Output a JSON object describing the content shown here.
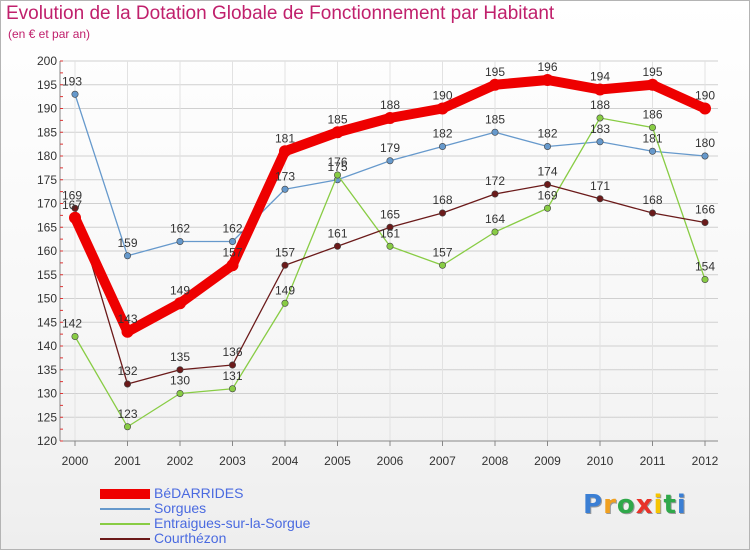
{
  "chart_data": {
    "type": "line",
    "title": "Evolution de la Dotation Globale de Fonctionnement par Habitant",
    "subtitle": "(en € et par an)",
    "categories": [
      "2000",
      "2001",
      "2002",
      "2003",
      "2004",
      "2005",
      "2006",
      "2007",
      "2008",
      "2009",
      "2010",
      "2011",
      "2012"
    ],
    "ylim": [
      120,
      200
    ],
    "yticks": [
      120,
      125,
      130,
      135,
      140,
      145,
      150,
      155,
      160,
      165,
      170,
      175,
      180,
      185,
      190,
      195,
      200
    ],
    "grid": true,
    "legend_position": "bottom-left",
    "series": [
      {
        "name": "BéDARRIDES",
        "color": "#ee0000",
        "values": [
          167,
          143,
          149,
          157,
          181,
          185,
          188,
          190,
          195,
          196,
          194,
          195,
          190
        ]
      },
      {
        "name": "Sorgues",
        "color": "#6699cc",
        "values": [
          193,
          159,
          162,
          162,
          173,
          175,
          179,
          182,
          185,
          182,
          183,
          181,
          180
        ]
      },
      {
        "name": "Entraigues-sur-la-Sorgue",
        "color": "#88cc44",
        "values": [
          142,
          123,
          130,
          131,
          149,
          176,
          161,
          157,
          164,
          169,
          188,
          186,
          154
        ]
      },
      {
        "name": "Courthézon",
        "color": "#6b1a1a",
        "values": [
          169,
          132,
          135,
          136,
          157,
          161,
          165,
          168,
          172,
          174,
          171,
          168,
          166
        ]
      }
    ]
  },
  "brand": {
    "letters": [
      "P",
      "r",
      "o",
      "x",
      "i",
      "t",
      "i"
    ],
    "colors": [
      "#3b7fd4",
      "#f0a020",
      "#2fa84a",
      "#e8332a",
      "#f5c400",
      "#2fa84a",
      "#3b7fd4"
    ]
  }
}
